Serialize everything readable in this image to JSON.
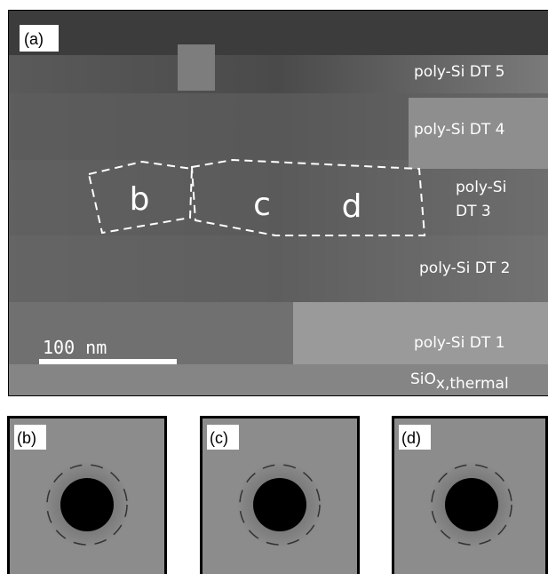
{
  "panel_a": {
    "label": "(a)",
    "layers": [
      "poly-Si DT 5",
      "poly-Si DT 4",
      "poly-Si",
      "DT 3",
      "poly-Si DT 2",
      "poly-Si DT 1"
    ],
    "oxide": {
      "main": "SiO",
      "sub": "x,thermal"
    },
    "scale_bar": "100 nm",
    "regions": [
      "b",
      "c",
      "d"
    ]
  },
  "diffraction_panels": [
    {
      "label": "(b)"
    },
    {
      "label": "(c)"
    },
    {
      "label": "(d)"
    }
  ]
}
